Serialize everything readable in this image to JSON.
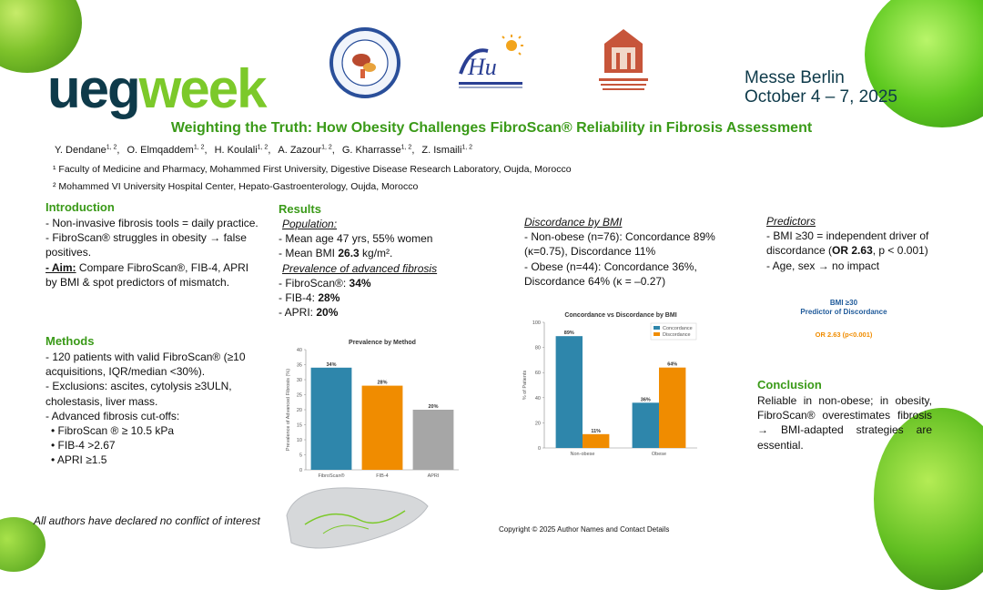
{
  "logo": {
    "ueg": "ueg",
    "week": "week"
  },
  "venue": {
    "line1": "Messe Berlin",
    "line2": "October 4 – 7, 2025"
  },
  "title": "Weighting the Truth: How Obesity Challenges FibroScan® Reliability in Fibrosis Assessment",
  "authors": [
    {
      "name": "Y. Dendane",
      "sup": "1, 2"
    },
    {
      "name": "O. Elmqaddem",
      "sup": "1, 2"
    },
    {
      "name": "H. Koulali",
      "sup": "1, 2"
    },
    {
      "name": "A. Zazour",
      "sup": "1, 2"
    },
    {
      "name": "G. Kharrasse",
      "sup": "1, 2"
    },
    {
      "name": "Z. Ismaili",
      "sup": "1, 2"
    }
  ],
  "affiliations": [
    "¹ Faculty of Medicine and Pharmacy, Mohammed First University, Digestive Disease Research Laboratory, Oujda, Morocco",
    "² Mohammed VI University Hospital Center, Hepato-Gastroenterology, Oujda, Morocco"
  ],
  "introduction": {
    "heading": "Introduction",
    "p1": "- Non-invasive fibrosis tools = daily practice.",
    "p2": "- FibroScan® struggles in obesity → false positives.",
    "aim_label": "- Aim:",
    "aim_text": " Compare FibroScan®, FIB-4, APRI by BMI & spot predictors of mismatch."
  },
  "methods": {
    "heading": "Methods",
    "lines": [
      "- 120 patients with valid FibroScan® (≥10 acquisitions, IQR/median <30%).",
      "- Exclusions: ascites, cytolysis ≥3ULN, cholestasis, liver mass.",
      "- Advanced fibrosis cut-offs:",
      "• FibroScan ® ≥ 10.5 kPa",
      "• FIB-4 >2.67",
      "• APRI ≥1.5"
    ]
  },
  "results": {
    "heading": "Results",
    "population_label": "Population:",
    "pop1": "- Mean age 47 yrs, 55% women",
    "pop2_pre": "- Mean BMI ",
    "pop2_bold": "26.3",
    "pop2_post": " kg/m².",
    "prev_label": "Prevalence of advanced fibrosis",
    "prev": [
      {
        "label": "- FibroScan®: ",
        "value": "34%"
      },
      {
        "label": "- FIB-4: ",
        "value": "28%"
      },
      {
        "label": "- APRI: ",
        "value": "20%"
      }
    ]
  },
  "discordance": {
    "label": "Discordance by BMI",
    "line1": "-  Non-obese (n=76): Concordance 89% (κ=0.75), Discordance 11%",
    "line2": "-  Obese (n=44): Concordance 36%, Discordance 64% (κ = –0.27)"
  },
  "predictors": {
    "label": "Predictors",
    "line1_pre": "- BMI ≥30 = independent driver of discordance (",
    "line1_bold": "OR 2.63",
    "line1_post": ", p < 0.001)",
    "line2": "- Age, sex → no impact",
    "graphic_line1": "BMI ≥30",
    "graphic_line2": "Predictor of Discordance",
    "graphic_or": "OR 2.63 (p<0.001)"
  },
  "conclusion": {
    "heading": "Conclusion",
    "text": "Reliable in non-obese; in obesity, FibroScan® overestimates fibrosis → BMI-adapted strategies are essential."
  },
  "footer": {
    "coi": "All authors have declared no conflict of interest",
    "copyright": "Copyright © 2025 Author Names and Contact Details"
  },
  "colors": {
    "green": "#3a9a18",
    "navy": "#0e3a4a",
    "blue": "#2e86ab",
    "orange": "#f08c00",
    "gray": "#a6a6a6"
  },
  "chart_data": [
    {
      "type": "bar",
      "title": "Prevalence by Method",
      "categories": [
        "FibroScan®",
        "FIB-4",
        "APRI"
      ],
      "values": [
        34,
        28,
        20
      ],
      "value_labels": [
        "34%",
        "28%",
        "20%"
      ],
      "ylabel": "Prevalence of Advanced Fibrosis (%)",
      "ylim": [
        0,
        40
      ],
      "yticks": [
        0,
        5,
        10,
        15,
        20,
        25,
        30,
        35,
        40
      ],
      "colors": [
        "#2e86ab",
        "#f08c00",
        "#a6a6a6"
      ]
    },
    {
      "type": "bar",
      "title": "Concordance vs Discordance by BMI",
      "categories": [
        "Non-obese",
        "Obese"
      ],
      "series": [
        {
          "name": "Concordance",
          "values": [
            89,
            36
          ],
          "labels": [
            "89%",
            "36%"
          ],
          "color": "#2e86ab"
        },
        {
          "name": "Discordance",
          "values": [
            11,
            64
          ],
          "labels": [
            "11%",
            "64%"
          ],
          "color": "#f08c00"
        }
      ],
      "ylabel": "% of Patients",
      "ylim": [
        0,
        100
      ],
      "yticks": [
        0,
        20,
        40,
        60,
        80,
        100
      ],
      "legend": "top-right"
    }
  ]
}
